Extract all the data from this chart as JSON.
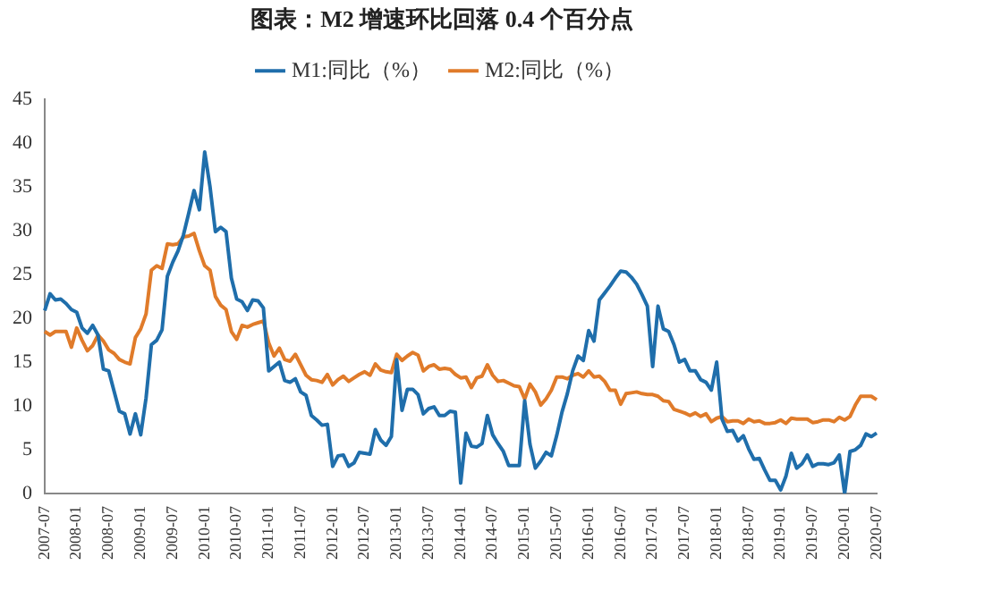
{
  "chart_data": {
    "type": "line",
    "title": "图表：M2 增速环比回落 0.4 个百分点",
    "categories": [
      "2007-07",
      null,
      null,
      null,
      null,
      null,
      "2008-01",
      null,
      null,
      null,
      null,
      null,
      "2008-07",
      null,
      null,
      null,
      null,
      null,
      "2009-01",
      null,
      null,
      null,
      null,
      null,
      "2009-07",
      null,
      null,
      null,
      null,
      null,
      "2010-01",
      null,
      null,
      null,
      null,
      null,
      "2010-07",
      null,
      null,
      null,
      null,
      null,
      "2011-01",
      null,
      null,
      null,
      null,
      null,
      "2011-07",
      null,
      null,
      null,
      null,
      null,
      "2012-01",
      null,
      null,
      null,
      null,
      null,
      "2012-07",
      null,
      null,
      null,
      null,
      null,
      "2013-01",
      null,
      null,
      null,
      null,
      null,
      "2013-07",
      null,
      null,
      null,
      null,
      null,
      "2014-01",
      null,
      null,
      null,
      null,
      null,
      "2014-07",
      null,
      null,
      null,
      null,
      null,
      "2015-01",
      null,
      null,
      null,
      null,
      null,
      "2015-07",
      null,
      null,
      null,
      null,
      null,
      "2016-01",
      null,
      null,
      null,
      null,
      null,
      "2016-07",
      null,
      null,
      null,
      null,
      null,
      "2017-01",
      null,
      null,
      null,
      null,
      null,
      "2017-07",
      null,
      null,
      null,
      null,
      null,
      "2018-01",
      null,
      null,
      null,
      null,
      null,
      "2018-07",
      null,
      null,
      null,
      null,
      null,
      "2019-01",
      null,
      null,
      null,
      null,
      null,
      "2019-07",
      null,
      null,
      null,
      null,
      null,
      "2020-01",
      null,
      null,
      null,
      null,
      null,
      "2020-07"
    ],
    "series": [
      {
        "name": "M1:同比（%）",
        "color": "#1f6eab",
        "values": [
          20.9,
          22.8,
          22.1,
          22.2,
          21.7,
          21.0,
          20.7,
          18.9,
          18.3,
          19.2,
          18.1,
          14.2,
          14.0,
          11.7,
          9.4,
          9.1,
          6.8,
          9.1,
          6.7,
          10.9,
          17.0,
          17.5,
          18.7,
          24.8,
          26.4,
          27.7,
          29.5,
          32.0,
          34.6,
          32.4,
          39.0,
          35.0,
          29.9,
          30.4,
          29.9,
          24.6,
          22.2,
          21.9,
          20.9,
          22.1,
          22.0,
          21.2,
          14.0,
          14.5,
          15.0,
          12.9,
          12.7,
          13.1,
          11.6,
          11.2,
          8.9,
          8.4,
          7.8,
          7.9,
          3.1,
          4.3,
          4.4,
          3.1,
          3.5,
          4.7,
          4.6,
          4.5,
          7.3,
          6.1,
          5.5,
          6.5,
          15.3,
          9.5,
          11.9,
          11.9,
          11.3,
          9.1,
          9.7,
          9.9,
          8.9,
          8.9,
          9.4,
          9.3,
          1.2,
          6.9,
          5.4,
          5.3,
          5.7,
          8.9,
          6.7,
          5.7,
          4.8,
          3.2,
          3.2,
          3.2,
          10.6,
          5.6,
          2.9,
          3.7,
          4.7,
          4.3,
          6.6,
          9.3,
          11.4,
          14.0,
          15.7,
          15.2,
          18.6,
          17.4,
          22.1,
          22.9,
          23.7,
          24.6,
          25.4,
          25.3,
          24.7,
          23.9,
          22.7,
          21.4,
          14.5,
          21.4,
          18.8,
          18.5,
          17.0,
          15.0,
          15.3,
          14.0,
          14.0,
          13.0,
          12.7,
          11.8,
          15.0,
          8.5,
          7.1,
          7.2,
          6.0,
          6.6,
          5.1,
          3.9,
          4.0,
          2.7,
          1.5,
          1.5,
          0.4,
          2.0,
          4.6,
          2.9,
          3.4,
          4.4,
          3.1,
          3.4,
          3.4,
          3.3,
          3.5,
          4.4,
          0.0,
          4.8,
          5.0,
          5.5,
          6.8,
          6.5,
          6.9
        ]
      },
      {
        "name": "M2:同比（%）",
        "color": "#e07b2a",
        "values": [
          18.5,
          18.1,
          18.5,
          18.5,
          18.5,
          16.7,
          18.9,
          17.5,
          16.3,
          16.9,
          18.1,
          17.4,
          16.4,
          16.0,
          15.3,
          15.0,
          14.8,
          17.8,
          18.8,
          20.5,
          25.5,
          26.0,
          25.7,
          28.5,
          28.4,
          28.5,
          29.3,
          29.4,
          29.7,
          27.7,
          26.0,
          25.5,
          22.5,
          21.5,
          21.0,
          18.5,
          17.6,
          19.2,
          19.0,
          19.3,
          19.5,
          19.7,
          17.2,
          15.7,
          16.6,
          15.3,
          15.1,
          15.9,
          14.7,
          13.5,
          13.0,
          12.9,
          12.7,
          13.6,
          12.4,
          13.0,
          13.4,
          12.8,
          13.2,
          13.6,
          13.9,
          13.5,
          14.8,
          14.1,
          13.9,
          13.8,
          15.9,
          15.2,
          15.7,
          16.1,
          15.8,
          14.0,
          14.5,
          14.7,
          14.2,
          14.3,
          14.2,
          13.6,
          13.2,
          13.3,
          12.1,
          13.2,
          13.4,
          14.7,
          13.5,
          12.8,
          12.9,
          12.6,
          12.3,
          12.2,
          10.8,
          12.5,
          11.6,
          10.1,
          10.8,
          11.8,
          13.3,
          13.3,
          13.1,
          13.5,
          13.7,
          13.3,
          14.0,
          13.3,
          13.4,
          12.8,
          11.8,
          11.8,
          10.2,
          11.4,
          11.5,
          11.6,
          11.4,
          11.3,
          11.3,
          11.1,
          10.6,
          10.5,
          9.6,
          9.4,
          9.2,
          8.9,
          9.2,
          8.8,
          9.1,
          8.2,
          8.6,
          8.8,
          8.2,
          8.3,
          8.3,
          8.0,
          8.5,
          8.2,
          8.3,
          8.0,
          8.0,
          8.1,
          8.4,
          8.0,
          8.6,
          8.5,
          8.5,
          8.5,
          8.1,
          8.2,
          8.4,
          8.4,
          8.2,
          8.7,
          8.4,
          8.8,
          10.1,
          11.1,
          11.1,
          11.1,
          10.7
        ]
      }
    ],
    "ylim": [
      0,
      45
    ],
    "yticks": [
      0,
      5,
      10,
      15,
      20,
      25,
      30,
      35,
      40,
      45
    ],
    "grid": false,
    "legend": "top",
    "marker": "none",
    "line_style": "solid"
  }
}
